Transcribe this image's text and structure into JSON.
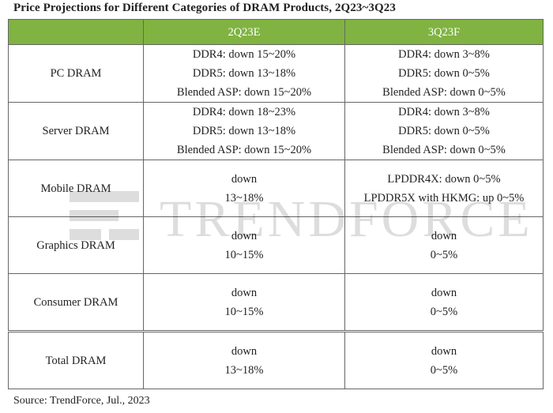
{
  "title": "Price Projections for Different Categories of DRAM Products, 2Q23~3Q23",
  "columns": [
    "",
    "2Q23E",
    "3Q23F"
  ],
  "rows": [
    {
      "category": "PC DRAM",
      "q2": [
        "DDR4: down 15~20%",
        "DDR5: down 13~18%",
        "Blended ASP: down 15~20%"
      ],
      "q3": [
        "DDR4: down 3~8%",
        "DDR5: down 0~5%",
        "Blended ASP: down 0~5%"
      ]
    },
    {
      "category": "Server DRAM",
      "q2": [
        "DDR4: down 18~23%",
        "DDR5: down 13~18%",
        "Blended ASP: down 15~20%"
      ],
      "q3": [
        "DDR4: down 3~8%",
        "DDR5: down 0~5%",
        "Blended ASP: down 0~5%"
      ]
    },
    {
      "category": "Mobile DRAM",
      "q2": [
        "down",
        "13~18%"
      ],
      "q3": [
        "LPDDR4X: down 0~5%",
        "LPDDR5X with HKMG: up 0~5%"
      ]
    },
    {
      "category": "Graphics DRAM",
      "q2": [
        "down",
        "10~15%"
      ],
      "q3": [
        "down",
        "0~5%"
      ]
    },
    {
      "category": "Consumer DRAM",
      "q2": [
        "down",
        "10~15%"
      ],
      "q3": [
        "down",
        "0~5%"
      ]
    },
    {
      "category": "Total DRAM",
      "q2": [
        "down",
        "13~18%"
      ],
      "q3": [
        "down",
        "0~5%"
      ]
    }
  ],
  "watermark": "TrendForce",
  "source": "Source: TrendForce, Jul., 2023",
  "colors": {
    "header_bg": "#80b341",
    "header_text": "#ffffff",
    "border": "#666666"
  }
}
